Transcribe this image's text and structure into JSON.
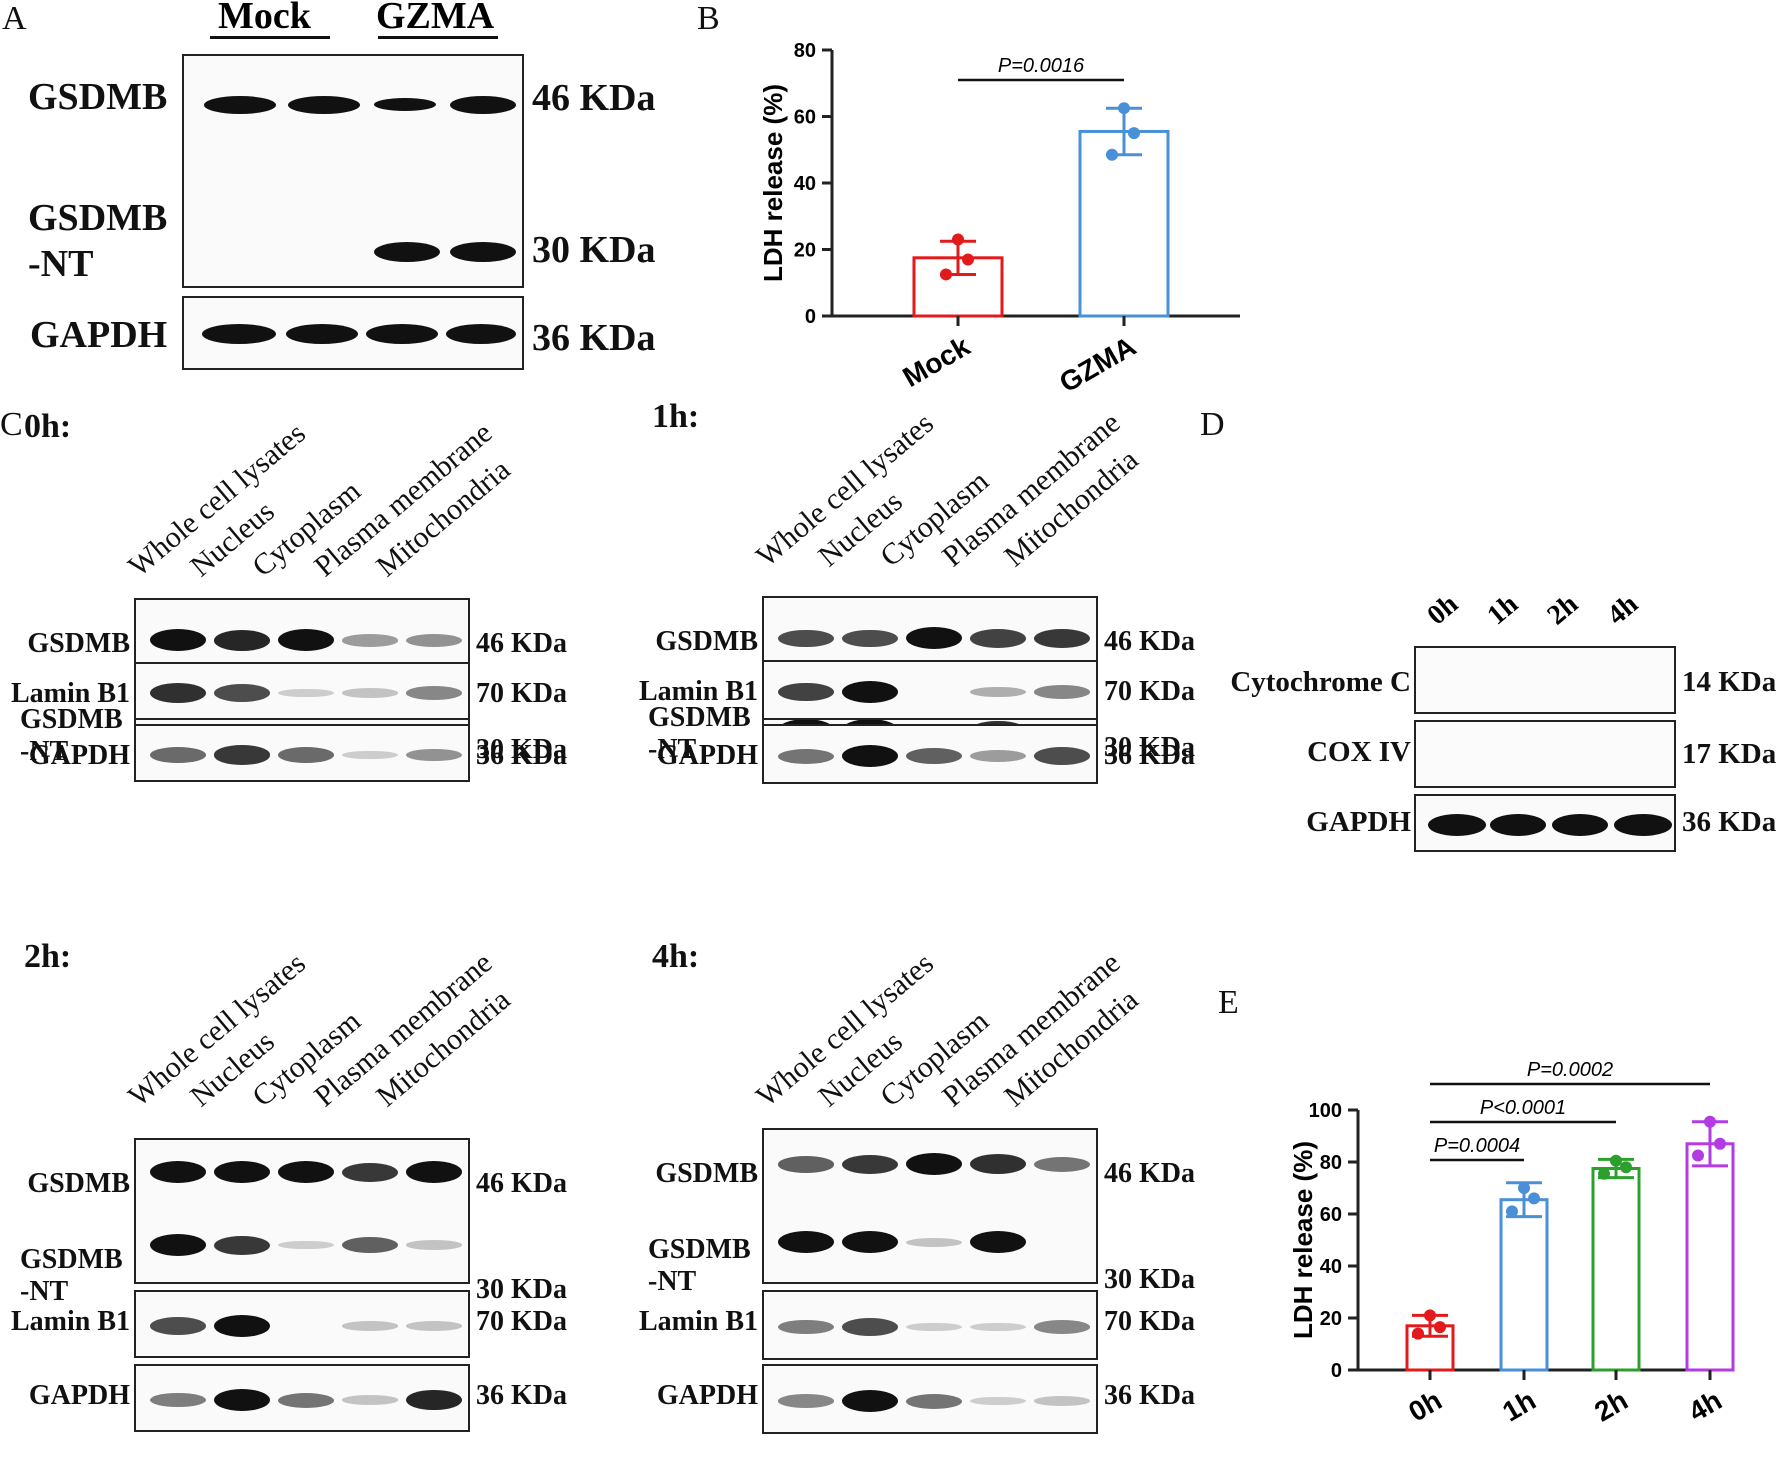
{
  "panel_labels": {
    "A": "A",
    "B": "B",
    "C": "C",
    "D": "D",
    "E": "E"
  },
  "panelA": {
    "groups": [
      "Mock",
      "GZMA"
    ],
    "rows": [
      "GSDMB",
      "GSDMB\n-NT",
      "GAPDH"
    ],
    "markers": [
      "46 KDa",
      "30 KDa",
      "36 KDa"
    ]
  },
  "panelC": {
    "columns": [
      "Whole cell lysates",
      "Nucleus",
      "Cytoplasm",
      "Plasma membrane",
      "Mitochondria"
    ],
    "times": [
      "0h:",
      "1h:",
      "2h:",
      "4h:"
    ],
    "rows": [
      "GSDMB",
      "GSDMB\n-NT",
      "Lamin B1",
      "GAPDH"
    ],
    "markers": [
      "46 KDa",
      "30 KDa",
      "70 KDa",
      "36 KDa"
    ]
  },
  "panelD": {
    "columns": [
      "0h",
      "1h",
      "2h",
      "4h"
    ],
    "rows": [
      "Cytochrome C",
      "COX IV",
      "GAPDH"
    ],
    "markers": [
      "14 KDa",
      "17 KDa",
      "36 KDa"
    ]
  },
  "chart_data": [
    {
      "type": "bar",
      "ylabel": "LDH release (%)",
      "ylim": [
        0,
        80
      ],
      "yticks": [
        "0",
        "20",
        "40",
        "60",
        "80"
      ],
      "categories": [
        "Mock",
        "GZMA"
      ],
      "values": [
        17.5,
        55.5
      ],
      "errors": [
        5,
        7
      ],
      "points": [
        [
          23,
          17,
          12.5
        ],
        [
          62.5,
          55,
          48.5
        ]
      ],
      "colors": [
        "#e31a1c",
        "#4a90d9"
      ],
      "annotations": [
        {
          "text": "P=0.0016",
          "from": 0,
          "to": 1
        }
      ]
    },
    {
      "type": "bar",
      "ylabel": "LDH release (%)",
      "ylim": [
        0,
        100
      ],
      "yticks": [
        "0",
        "20",
        "40",
        "60",
        "80",
        "100"
      ],
      "categories": [
        "0h",
        "1h",
        "2h",
        "4h"
      ],
      "values": [
        17,
        65.5,
        77.5,
        87
      ],
      "errors": [
        4,
        6.5,
        3.5,
        8.5
      ],
      "points": [
        [
          21,
          16.5,
          14
        ],
        [
          70,
          66,
          61
        ],
        [
          80.5,
          78,
          75.5
        ],
        [
          95.5,
          87,
          82.5
        ]
      ],
      "colors": [
        "#e31a1c",
        "#4a90d9",
        "#2ca02c",
        "#b23be3"
      ],
      "annotations": [
        {
          "text": "P=0.0004",
          "from": 0,
          "to": 1
        },
        {
          "text": "P<0.0001",
          "from": 0,
          "to": 2
        },
        {
          "text": "P=0.0002",
          "from": 0,
          "to": 3
        }
      ]
    }
  ]
}
